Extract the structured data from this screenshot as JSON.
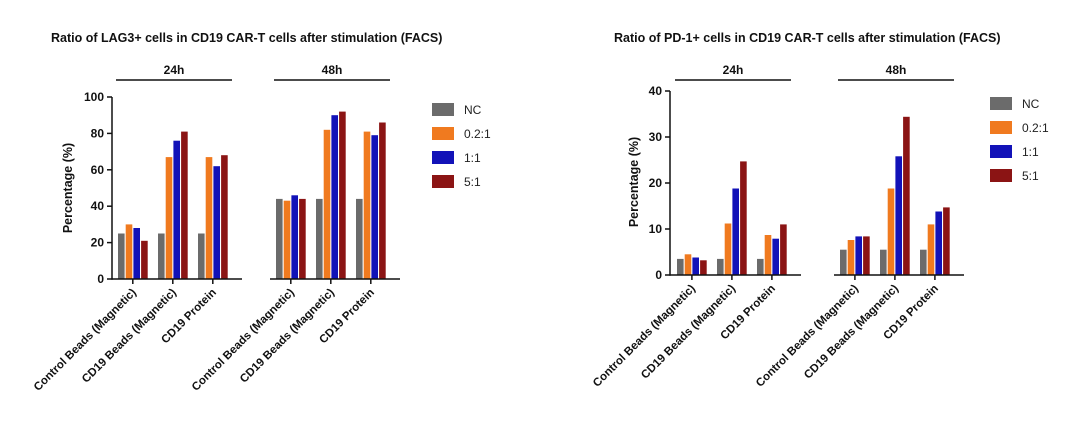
{
  "chart_data": [
    {
      "type": "bar",
      "title": "Ratio of LAG3+ cells in CD19 CAR-T cells after stimulation  (FACS)",
      "ylabel": "Percentage (%)",
      "xlabel": "",
      "ylim": [
        0,
        100
      ],
      "yticks": [
        0,
        20,
        40,
        60,
        80,
        100
      ],
      "groups": [
        "24h",
        "48h"
      ],
      "categories": [
        "Control Beads (Magnetic)",
        "CD19 Beads (Magnetic)",
        "CD19 Protein"
      ],
      "series": [
        {
          "name": "NC",
          "color": "#6b6b6b",
          "values": [
            [
              25,
              25,
              25
            ],
            [
              44,
              44,
              44
            ]
          ]
        },
        {
          "name": "0.2:1",
          "color": "#f07a1f",
          "values": [
            [
              30,
              67,
              67
            ],
            [
              43,
              82,
              81
            ]
          ]
        },
        {
          "name": "1:1",
          "color": "#1212b8",
          "values": [
            [
              28,
              76,
              62
            ],
            [
              46,
              90,
              79
            ]
          ]
        },
        {
          "name": "5:1",
          "color": "#8b1414",
          "values": [
            [
              21,
              81,
              68
            ],
            [
              44,
              92,
              86
            ]
          ]
        }
      ]
    },
    {
      "type": "bar",
      "title": "Ratio of PD-1+ cells in CD19 CAR-T cells after stimulation  (FACS)",
      "ylabel": "Percentage (%)",
      "xlabel": "",
      "ylim": [
        0,
        40
      ],
      "yticks": [
        0,
        10,
        20,
        30,
        40
      ],
      "groups": [
        "24h",
        "48h"
      ],
      "categories": [
        "Control Beads (Magnetic)",
        "CD19 Beads (Magnetic)",
        "CD19 Protein"
      ],
      "series": [
        {
          "name": "NC",
          "color": "#6b6b6b",
          "values": [
            [
              3.5,
              3.5,
              3.5
            ],
            [
              5.5,
              5.5,
              5.5
            ]
          ]
        },
        {
          "name": "0.2:1",
          "color": "#f07a1f",
          "values": [
            [
              4.5,
              11.2,
              8.7
            ],
            [
              7.6,
              18.8,
              11
            ]
          ]
        },
        {
          "name": "1:1",
          "color": "#1212b8",
          "values": [
            [
              3.8,
              18.8,
              7.9
            ],
            [
              8.4,
              25.8,
              13.8
            ]
          ]
        },
        {
          "name": "5:1",
          "color": "#8b1414",
          "values": [
            [
              3.2,
              24.7,
              11
            ],
            [
              8.4,
              34.4,
              14.7
            ]
          ]
        }
      ]
    }
  ]
}
